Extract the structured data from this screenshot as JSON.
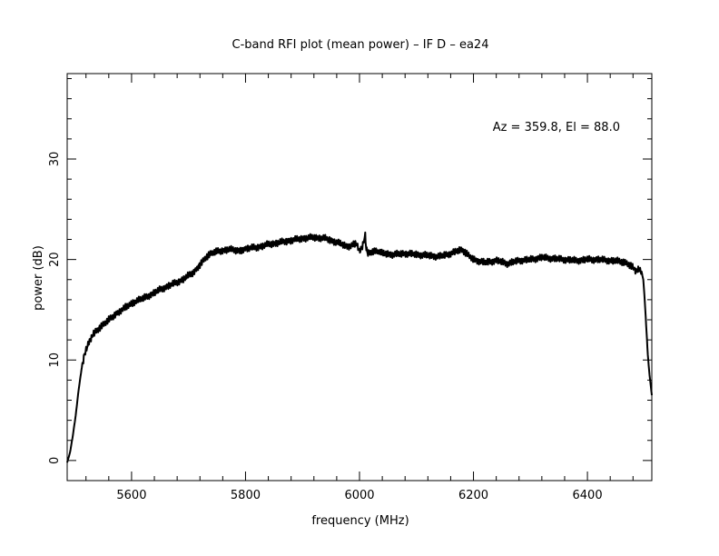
{
  "chart_data": {
    "type": "line",
    "title": "C-band RFI plot (mean power) – IF D – ea24",
    "xlabel": "frequency (MHz)",
    "ylabel": "power (dB)",
    "annotation": "Az = 359.8, El = 88.0",
    "xlim": [
      5487,
      5513
    ],
    "xlim_note": "",
    "x_range": [
      5487,
      6513
    ],
    "y_range": [
      -2,
      38.5
    ],
    "x_ticks": [
      5600,
      5800,
      6000,
      6200,
      6400
    ],
    "y_ticks": [
      0,
      10,
      20,
      30
    ],
    "x_minor_step": 40,
    "y_minor_step": 2,
    "grid": false,
    "line_color": "#000000",
    "series": [
      {
        "x": [
          5487,
          5492,
          5497,
          5502,
          5507,
          5512,
          5517,
          5522,
          5527,
          5532,
          5540,
          5550,
          5560,
          5575,
          5590,
          5600,
          5615,
          5630,
          5650,
          5670,
          5690,
          5710,
          5720,
          5730,
          5740,
          5750,
          5770,
          5790,
          5800,
          5820,
          5840,
          5860,
          5880,
          5900,
          5920,
          5940,
          5960,
          5980,
          5995,
          6000,
          6005,
          6010,
          6012,
          6015,
          6020,
          6030,
          6040,
          6060,
          6080,
          6100,
          6120,
          6140,
          6160,
          6180,
          6190,
          6200,
          6220,
          6240,
          6260,
          6280,
          6300,
          6320,
          6340,
          6360,
          6380,
          6400,
          6420,
          6440,
          6460,
          6470,
          6480,
          6485,
          6490,
          6495,
          6498,
          6500,
          6503,
          6506,
          6509,
          6513
        ],
        "y": [
          -0.2,
          0.8,
          2.5,
          4.5,
          7,
          9,
          10.5,
          11.3,
          12,
          12.5,
          13,
          13.5,
          14,
          14.7,
          15.3,
          15.6,
          16,
          16.4,
          17,
          17.5,
          18,
          18.8,
          19.5,
          20.2,
          20.6,
          20.8,
          21,
          20.9,
          21.1,
          21.2,
          21.5,
          21.7,
          21.9,
          22.1,
          22.2,
          22.1,
          21.7,
          21.3,
          21.6,
          20.8,
          21.3,
          22.4,
          21.0,
          20.6,
          20.7,
          20.8,
          20.6,
          20.5,
          20.6,
          20.5,
          20.4,
          20.3,
          20.6,
          21.0,
          20.5,
          20.0,
          19.7,
          19.9,
          19.6,
          19.9,
          20.0,
          20.2,
          20.1,
          20.0,
          19.9,
          20.0,
          20.0,
          19.9,
          19.8,
          19.6,
          19.2,
          18.9,
          19.0,
          18.8,
          18.0,
          16.5,
          13.5,
          10.5,
          8.5,
          6.5
        ]
      }
    ]
  }
}
